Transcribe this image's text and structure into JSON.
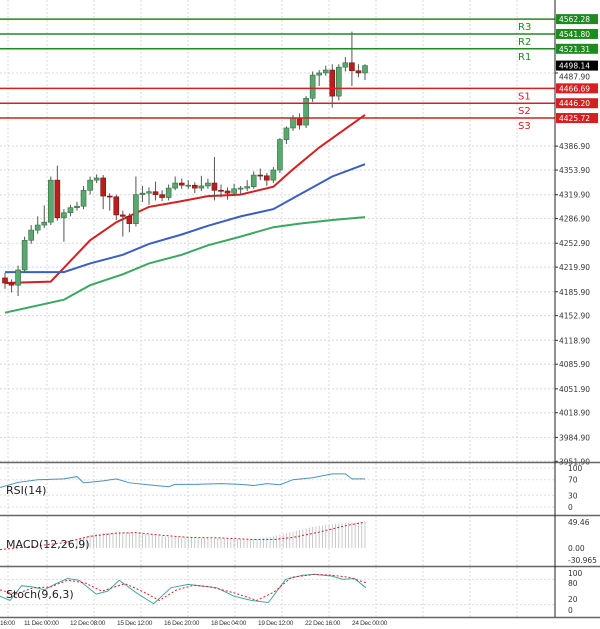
{
  "chart_data": {
    "type": "candlestick",
    "price_axis": {
      "ticks": [
        "4487.90",
        "4386.90",
        "4353.90",
        "4319.90",
        "4286.90",
        "4252.90",
        "4219.90",
        "4185.90",
        "4152.90",
        "4118.90",
        "4085.90",
        "4051.90",
        "4018.90",
        "3984.90",
        "3951.90"
      ],
      "range": [
        3951.9,
        4570
      ]
    },
    "time_axis": {
      "ticks": [
        "16:00",
        "11 Dec 00:00",
        "12 Dec 08:00",
        "15 Dec 12:00",
        "16 Dec 20:00",
        "18 Dec 04:00",
        "19 Dec 12:00",
        "22 Dec 16:00",
        "24 Dec 00:00"
      ]
    },
    "last_price": "4498.14",
    "levels": [
      {
        "label": "R3",
        "value": "4562.28",
        "color": "#1f8a1f"
      },
      {
        "label": "R2",
        "value": "4541.80",
        "color": "#1f8a1f"
      },
      {
        "label": "R1",
        "value": "4521.31",
        "color": "#1f8a1f"
      },
      {
        "label": "S1",
        "value": "4466.69",
        "color": "#d42020"
      },
      {
        "label": "S2",
        "value": "4446.20",
        "color": "#d42020"
      },
      {
        "label": "S3",
        "value": "4425.72",
        "color": "#d42020"
      }
    ],
    "candles_ohlc": [
      [
        4205,
        4212,
        4190,
        4198
      ],
      [
        4198,
        4203,
        4185,
        4195
      ],
      [
        4195,
        4222,
        4180,
        4216
      ],
      [
        4216,
        4262,
        4212,
        4257
      ],
      [
        4257,
        4278,
        4252,
        4271
      ],
      [
        4271,
        4290,
        4266,
        4278
      ],
      [
        4278,
        4305,
        4274,
        4282
      ],
      [
        4282,
        4345,
        4278,
        4340
      ],
      [
        4340,
        4360,
        4284,
        4288
      ],
      [
        4288,
        4300,
        4255,
        4295
      ],
      [
        4295,
        4306,
        4290,
        4302
      ],
      [
        4302,
        4310,
        4298,
        4304
      ],
      [
        4304,
        4332,
        4300,
        4326
      ],
      [
        4326,
        4345,
        4320,
        4340
      ],
      [
        4340,
        4348,
        4336,
        4343
      ],
      [
        4343,
        4347,
        4300,
        4318
      ],
      [
        4318,
        4322,
        4298,
        4317
      ],
      [
        4317,
        4320,
        4285,
        4292
      ],
      [
        4292,
        4298,
        4262,
        4290
      ],
      [
        4290,
        4294,
        4268,
        4280
      ],
      [
        4280,
        4345,
        4276,
        4320
      ],
      [
        4320,
        4332,
        4310,
        4322
      ],
      [
        4322,
        4330,
        4306,
        4324
      ],
      [
        4324,
        4338,
        4312,
        4320
      ],
      [
        4320,
        4326,
        4311,
        4316
      ],
      [
        4316,
        4334,
        4312,
        4329
      ],
      [
        4329,
        4345,
        4326,
        4336
      ],
      [
        4336,
        4342,
        4328,
        4333
      ],
      [
        4333,
        4340,
        4328,
        4333
      ],
      [
        4333,
        4337,
        4322,
        4329
      ],
      [
        4329,
        4346,
        4325,
        4332
      ],
      [
        4332,
        4342,
        4328,
        4336
      ],
      [
        4336,
        4372,
        4312,
        4326
      ],
      [
        4326,
        4334,
        4316,
        4325
      ],
      [
        4325,
        4330,
        4313,
        4322
      ],
      [
        4322,
        4335,
        4318,
        4328
      ],
      [
        4328,
        4332,
        4320,
        4329
      ],
      [
        4329,
        4340,
        4325,
        4331
      ],
      [
        4331,
        4352,
        4328,
        4347
      ],
      [
        4347,
        4356,
        4340,
        4346
      ],
      [
        4346,
        4350,
        4332,
        4340
      ],
      [
        4340,
        4358,
        4336,
        4354
      ],
      [
        4354,
        4398,
        4350,
        4396
      ],
      [
        4396,
        4414,
        4390,
        4412
      ],
      [
        4412,
        4430,
        4408,
        4426
      ],
      [
        4426,
        4432,
        4410,
        4416
      ],
      [
        4416,
        4456,
        4412,
        4453
      ],
      [
        4453,
        4490,
        4448,
        4485
      ],
      [
        4485,
        4492,
        4470,
        4488
      ],
      [
        4488,
        4498,
        4484,
        4492
      ],
      [
        4492,
        4500,
        4440,
        4456
      ],
      [
        4456,
        4500,
        4450,
        4496
      ],
      [
        4496,
        4510,
        4490,
        4502
      ],
      [
        4502,
        4545,
        4470,
        4491
      ],
      [
        4491,
        4500,
        4482,
        4488
      ],
      [
        4488,
        4500,
        4478,
        4498.14
      ]
    ],
    "moving_averages": [
      {
        "color": "#d42020",
        "points": [
          [
            0,
            4198
          ],
          [
            7,
            4200
          ],
          [
            13,
            4257
          ],
          [
            17,
            4282
          ],
          [
            22,
            4303
          ],
          [
            27,
            4311
          ],
          [
            31,
            4318
          ],
          [
            36,
            4320
          ],
          [
            41,
            4331
          ],
          [
            44,
            4355
          ],
          [
            48,
            4385
          ],
          [
            55,
            4430
          ]
        ]
      },
      {
        "color": "#3a5fc0",
        "points": [
          [
            0,
            4213
          ],
          [
            9,
            4213
          ],
          [
            13,
            4225
          ],
          [
            18,
            4237
          ],
          [
            22,
            4252
          ],
          [
            27,
            4265
          ],
          [
            31,
            4277
          ],
          [
            36,
            4290
          ],
          [
            41,
            4300
          ],
          [
            45,
            4320
          ],
          [
            50,
            4345
          ],
          [
            55,
            4362
          ]
        ]
      },
      {
        "color": "#3aa860",
        "points": [
          [
            0,
            4157
          ],
          [
            9,
            4175
          ],
          [
            13,
            4195
          ],
          [
            18,
            4210
          ],
          [
            22,
            4225
          ],
          [
            27,
            4237
          ],
          [
            31,
            4250
          ],
          [
            36,
            4262
          ],
          [
            41,
            4275
          ],
          [
            45,
            4280
          ],
          [
            50,
            4285
          ],
          [
            55,
            4289
          ]
        ]
      }
    ],
    "rsi": {
      "label": "RSI(14)",
      "ticks": [
        "100",
        "70",
        "30",
        "0"
      ],
      "points": [
        [
          -1,
          50
        ],
        [
          2,
          63
        ],
        [
          5,
          70
        ],
        [
          9,
          72
        ],
        [
          11,
          78
        ],
        [
          12,
          62
        ],
        [
          15,
          67
        ],
        [
          17,
          72
        ],
        [
          19,
          62
        ],
        [
          23,
          55
        ],
        [
          25,
          52
        ],
        [
          26,
          58
        ],
        [
          29,
          58
        ],
        [
          33,
          60
        ],
        [
          36,
          58
        ],
        [
          38,
          55
        ],
        [
          40,
          60
        ],
        [
          42,
          57
        ],
        [
          44,
          70
        ],
        [
          47,
          75
        ],
        [
          50,
          85
        ],
        [
          52,
          85
        ],
        [
          53,
          72
        ],
        [
          55,
          72
        ]
      ]
    },
    "macd": {
      "label": "MACD(12,26,9)",
      "ticks": [
        "49.46",
        "0.00",
        "-30.965"
      ],
      "histogram": [
        [
          11,
          18
        ],
        [
          13,
          24
        ],
        [
          15,
          28
        ],
        [
          17,
          30
        ],
        [
          19,
          29
        ],
        [
          21,
          27
        ],
        [
          23,
          24
        ],
        [
          25,
          21
        ],
        [
          27,
          20
        ],
        [
          29,
          19
        ],
        [
          31,
          18
        ],
        [
          33,
          18
        ],
        [
          35,
          17
        ],
        [
          37,
          16
        ],
        [
          39,
          18
        ],
        [
          41,
          22
        ],
        [
          43,
          28
        ],
        [
          45,
          34
        ],
        [
          47,
          40
        ],
        [
          49,
          44
        ],
        [
          51,
          46
        ],
        [
          53,
          48
        ],
        [
          55,
          49
        ]
      ],
      "signal": [
        [
          -1,
          -3
        ],
        [
          5,
          4
        ],
        [
          9,
          10
        ],
        [
          13,
          22
        ],
        [
          17,
          28
        ],
        [
          20,
          29
        ],
        [
          24,
          24
        ],
        [
          28,
          20
        ],
        [
          33,
          19
        ],
        [
          38,
          16
        ],
        [
          41,
          16
        ],
        [
          44,
          20
        ],
        [
          48,
          30
        ],
        [
          52,
          42
        ],
        [
          55,
          49
        ]
      ]
    },
    "stochastic": {
      "label": "Stoch(9,6,3)",
      "ticks": [
        "100",
        "80",
        "20",
        "0"
      ],
      "k": [
        [
          -1,
          40
        ],
        [
          1,
          30
        ],
        [
          3,
          65
        ],
        [
          5,
          62
        ],
        [
          7,
          55
        ],
        [
          9,
          70
        ],
        [
          11,
          82
        ],
        [
          13,
          78
        ],
        [
          16,
          45
        ],
        [
          18,
          52
        ],
        [
          20,
          78
        ],
        [
          23,
          48
        ],
        [
          26,
          22
        ],
        [
          29,
          60
        ],
        [
          32,
          68
        ],
        [
          34,
          65
        ],
        [
          37,
          60
        ],
        [
          40,
          40
        ],
        [
          43,
          30
        ],
        [
          46,
          25
        ],
        [
          49,
          80
        ],
        [
          52,
          90
        ],
        [
          54,
          92
        ],
        [
          57,
          88
        ],
        [
          59,
          80
        ],
        [
          61,
          82
        ],
        [
          63,
          60
        ]
      ],
      "d": [
        [
          -1,
          55
        ],
        [
          2,
          45
        ],
        [
          5,
          60
        ],
        [
          8,
          62
        ],
        [
          11,
          78
        ],
        [
          14,
          72
        ],
        [
          17,
          52
        ],
        [
          21,
          70
        ],
        [
          24,
          52
        ],
        [
          27,
          30
        ],
        [
          30,
          55
        ],
        [
          33,
          66
        ],
        [
          36,
          62
        ],
        [
          40,
          48
        ],
        [
          44,
          30
        ],
        [
          47,
          50
        ],
        [
          50,
          85
        ],
        [
          54,
          92
        ],
        [
          57,
          90
        ],
        [
          60,
          85
        ],
        [
          63,
          72
        ]
      ]
    }
  }
}
